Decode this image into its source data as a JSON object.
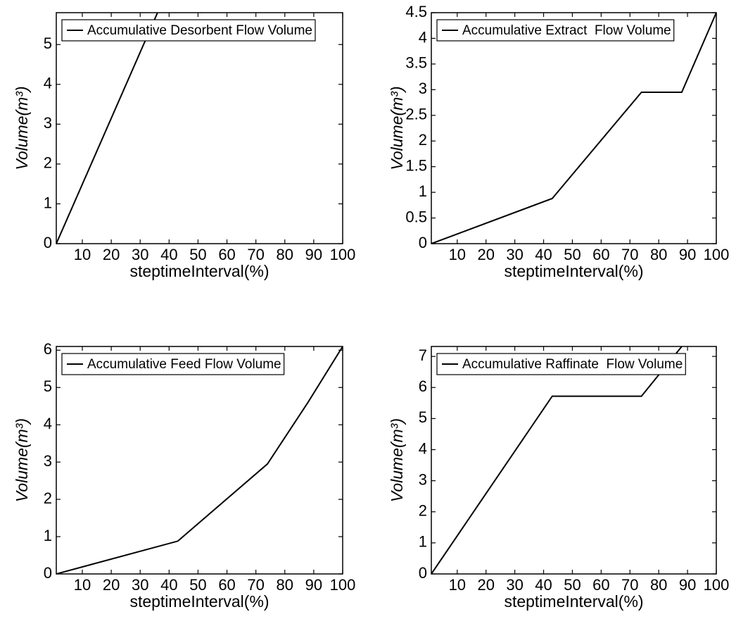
{
  "chart_data": [
    {
      "type": "line",
      "xlabel": "steptimeInterval(%)",
      "ylabel": "Volume(m³)",
      "x": [
        1,
        36
      ],
      "series": [
        {
          "name": "Accumulative Desorbent Flow Volume",
          "color": "#000000",
          "values": [
            0,
            5.8
          ]
        }
      ],
      "xlim": [
        1,
        100
      ],
      "ylim": [
        0,
        5.8
      ],
      "xticks": [
        10,
        20,
        30,
        40,
        50,
        60,
        70,
        80,
        90,
        100
      ],
      "yticks": [
        0,
        1,
        2,
        3,
        4,
        5
      ]
    },
    {
      "type": "line",
      "xlabel": "steptimeInterval(%)",
      "ylabel": "Volume(m³)",
      "x": [
        1,
        43,
        74,
        88,
        100
      ],
      "series": [
        {
          "name": "Accumulative Extract  Flow Volume",
          "color": "#000000",
          "values": [
            0,
            0.88,
            2.95,
            2.95,
            4.5
          ]
        }
      ],
      "xlim": [
        1,
        100
      ],
      "ylim": [
        0,
        4.5
      ],
      "xticks": [
        10,
        20,
        30,
        40,
        50,
        60,
        70,
        80,
        90,
        100
      ],
      "yticks": [
        0,
        0.5,
        1,
        1.5,
        2,
        2.5,
        3,
        3.5,
        4,
        4.5
      ]
    },
    {
      "type": "line",
      "xlabel": "steptimeInterval(%)",
      "ylabel": "Volume(m³)",
      "x": [
        1,
        43,
        74,
        88,
        100
      ],
      "series": [
        {
          "name": "Accumulative Feed Flow Volume",
          "color": "#000000",
          "values": [
            0,
            0.88,
            2.95,
            4.6,
            6.1
          ]
        }
      ],
      "xlim": [
        1,
        100
      ],
      "ylim": [
        0,
        6.1
      ],
      "xticks": [
        10,
        20,
        30,
        40,
        50,
        60,
        70,
        80,
        90,
        100
      ],
      "yticks": [
        0,
        1,
        2,
        3,
        4,
        5,
        6
      ]
    },
    {
      "type": "line",
      "xlabel": "steptimeInterval(%)",
      "ylabel": "Volume(m³)",
      "x": [
        1,
        43,
        74,
        88
      ],
      "series": [
        {
          "name": "Accumulative Raffinate  Flow Volume",
          "color": "#000000",
          "values": [
            0,
            5.72,
            5.72,
            7.32
          ]
        }
      ],
      "xlim": [
        1,
        100
      ],
      "ylim": [
        0,
        7.32
      ],
      "xticks": [
        10,
        20,
        30,
        40,
        50,
        60,
        70,
        80,
        90,
        100
      ],
      "yticks": [
        0,
        1,
        2,
        3,
        4,
        5,
        6,
        7
      ]
    }
  ]
}
